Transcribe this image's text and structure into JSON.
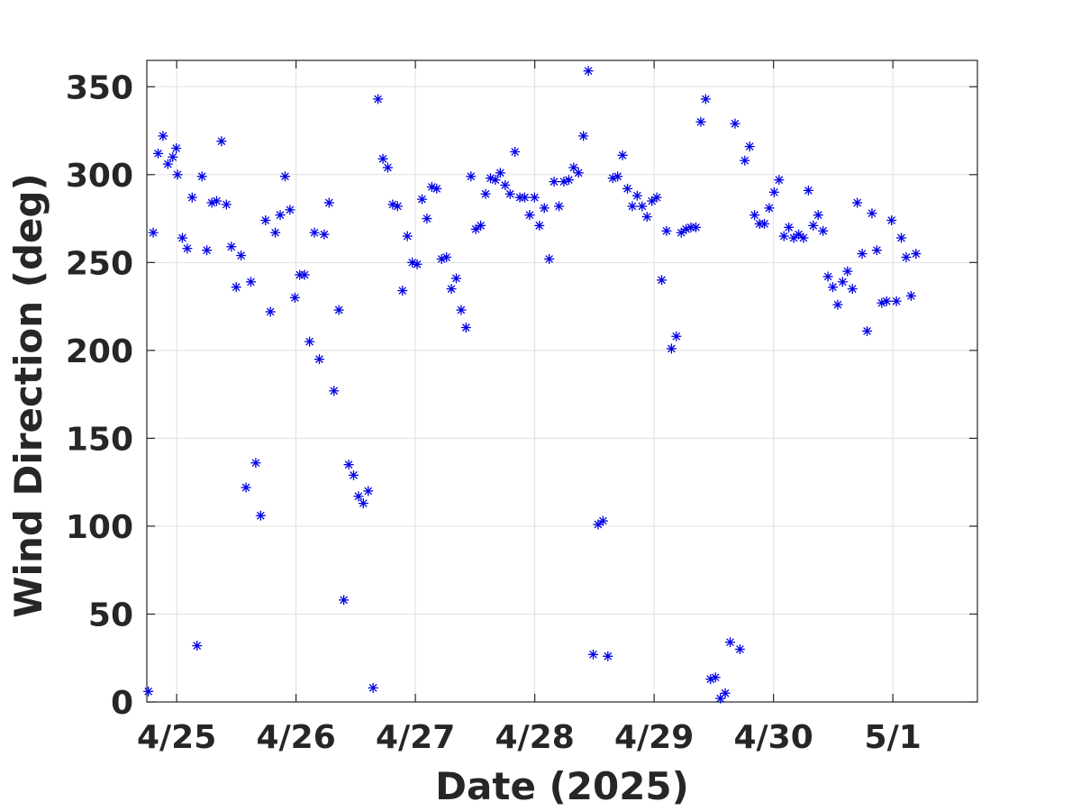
{
  "chart_data": {
    "type": "scatter",
    "xlabel": "Date (2025)",
    "ylabel": "Wind Direction (deg)",
    "title": "",
    "ylim": [
      0,
      365
    ],
    "xlim": [
      "2025-04-24 18:00",
      "2025-05-01 17:00"
    ],
    "yticks": [
      0,
      50,
      100,
      150,
      200,
      250,
      300,
      350
    ],
    "xticks": [
      {
        "date": "2025-04-25 00:00",
        "label": "4/25"
      },
      {
        "date": "2025-04-26 00:00",
        "label": "4/26"
      },
      {
        "date": "2025-04-27 00:00",
        "label": "4/27"
      },
      {
        "date": "2025-04-28 00:00",
        "label": "4/28"
      },
      {
        "date": "2025-04-29 00:00",
        "label": "4/29"
      },
      {
        "date": "2025-04-30 00:00",
        "label": "4/30"
      },
      {
        "date": "2025-05-01 00:00",
        "label": "5/1"
      }
    ],
    "grid": true,
    "marker": "asterisk",
    "marker_color": "#0000e6",
    "points": [
      {
        "x": "2025-04-24 18:18",
        "y": 6
      },
      {
        "x": "2025-04-24 19:17",
        "y": 267
      },
      {
        "x": "2025-04-24 20:16",
        "y": 312
      },
      {
        "x": "2025-04-24 21:15",
        "y": 322
      },
      {
        "x": "2025-04-24 22:14",
        "y": 306
      },
      {
        "x": "2025-04-24 23:13",
        "y": 310
      },
      {
        "x": "2025-04-24 23:55",
        "y": 315
      },
      {
        "x": "2025-04-25 00:10",
        "y": 300
      },
      {
        "x": "2025-04-25 01:09",
        "y": 264
      },
      {
        "x": "2025-04-25 02:08",
        "y": 258
      },
      {
        "x": "2025-04-25 03:07",
        "y": 287
      },
      {
        "x": "2025-04-25 04:06",
        "y": 32
      },
      {
        "x": "2025-04-25 05:05",
        "y": 299
      },
      {
        "x": "2025-04-25 06:04",
        "y": 257
      },
      {
        "x": "2025-04-25 07:03",
        "y": 284
      },
      {
        "x": "2025-04-25 08:02",
        "y": 285
      },
      {
        "x": "2025-04-25 09:01",
        "y": 319
      },
      {
        "x": "2025-04-25 10:00",
        "y": 283
      },
      {
        "x": "2025-04-25 10:59",
        "y": 259
      },
      {
        "x": "2025-04-25 11:58",
        "y": 236
      },
      {
        "x": "2025-04-25 12:57",
        "y": 254
      },
      {
        "x": "2025-04-25 13:56",
        "y": 122
      },
      {
        "x": "2025-04-25 14:55",
        "y": 239
      },
      {
        "x": "2025-04-25 15:54",
        "y": 136
      },
      {
        "x": "2025-04-25 16:53",
        "y": 106
      },
      {
        "x": "2025-04-25 17:52",
        "y": 274
      },
      {
        "x": "2025-04-25 18:51",
        "y": 222
      },
      {
        "x": "2025-04-25 19:50",
        "y": 267
      },
      {
        "x": "2025-04-25 20:49",
        "y": 277
      },
      {
        "x": "2025-04-25 21:48",
        "y": 299
      },
      {
        "x": "2025-04-25 22:47",
        "y": 280
      },
      {
        "x": "2025-04-25 23:46",
        "y": 230
      },
      {
        "x": "2025-04-26 00:45",
        "y": 243
      },
      {
        "x": "2025-04-26 01:44",
        "y": 243
      },
      {
        "x": "2025-04-26 02:43",
        "y": 205
      },
      {
        "x": "2025-04-26 03:42",
        "y": 267
      },
      {
        "x": "2025-04-26 04:41",
        "y": 195
      },
      {
        "x": "2025-04-26 05:40",
        "y": 266
      },
      {
        "x": "2025-04-26 06:39",
        "y": 284
      },
      {
        "x": "2025-04-26 07:38",
        "y": 177
      },
      {
        "x": "2025-04-26 08:37",
        "y": 223
      },
      {
        "x": "2025-04-26 09:36",
        "y": 58
      },
      {
        "x": "2025-04-26 10:35",
        "y": 135
      },
      {
        "x": "2025-04-26 11:34",
        "y": 129
      },
      {
        "x": "2025-04-26 12:33",
        "y": 117
      },
      {
        "x": "2025-04-26 13:32",
        "y": 113
      },
      {
        "x": "2025-04-26 14:31",
        "y": 120
      },
      {
        "x": "2025-04-26 15:30",
        "y": 8
      },
      {
        "x": "2025-04-26 16:29",
        "y": 343
      },
      {
        "x": "2025-04-26 17:28",
        "y": 309
      },
      {
        "x": "2025-04-26 18:27",
        "y": 304
      },
      {
        "x": "2025-04-26 19:26",
        "y": 283
      },
      {
        "x": "2025-04-26 20:25",
        "y": 282
      },
      {
        "x": "2025-04-26 21:24",
        "y": 234
      },
      {
        "x": "2025-04-26 22:23",
        "y": 265
      },
      {
        "x": "2025-04-26 23:22",
        "y": 250
      },
      {
        "x": "2025-04-27 00:21",
        "y": 249
      },
      {
        "x": "2025-04-27 01:20",
        "y": 286
      },
      {
        "x": "2025-04-27 02:19",
        "y": 275
      },
      {
        "x": "2025-04-27 03:18",
        "y": 293
      },
      {
        "x": "2025-04-27 04:17",
        "y": 292
      },
      {
        "x": "2025-04-27 05:16",
        "y": 252
      },
      {
        "x": "2025-04-27 06:15",
        "y": 253
      },
      {
        "x": "2025-04-27 07:14",
        "y": 235
      },
      {
        "x": "2025-04-27 08:13",
        "y": 241
      },
      {
        "x": "2025-04-27 09:12",
        "y": 223
      },
      {
        "x": "2025-04-27 10:11",
        "y": 213
      },
      {
        "x": "2025-04-27 11:10",
        "y": 299
      },
      {
        "x": "2025-04-27 12:09",
        "y": 269
      },
      {
        "x": "2025-04-27 13:08",
        "y": 271
      },
      {
        "x": "2025-04-27 14:07",
        "y": 289
      },
      {
        "x": "2025-04-27 15:06",
        "y": 298
      },
      {
        "x": "2025-04-27 16:05",
        "y": 297
      },
      {
        "x": "2025-04-27 17:04",
        "y": 301
      },
      {
        "x": "2025-04-27 18:03",
        "y": 294
      },
      {
        "x": "2025-04-27 19:02",
        "y": 289
      },
      {
        "x": "2025-04-27 20:01",
        "y": 313
      },
      {
        "x": "2025-04-27 21:00",
        "y": 287
      },
      {
        "x": "2025-04-27 21:59",
        "y": 287
      },
      {
        "x": "2025-04-27 22:58",
        "y": 277
      },
      {
        "x": "2025-04-27 23:57",
        "y": 287
      },
      {
        "x": "2025-04-28 00:56",
        "y": 271
      },
      {
        "x": "2025-04-28 01:55",
        "y": 281
      },
      {
        "x": "2025-04-28 02:54",
        "y": 252
      },
      {
        "x": "2025-04-28 03:53",
        "y": 296
      },
      {
        "x": "2025-04-28 04:52",
        "y": 282
      },
      {
        "x": "2025-04-28 05:51",
        "y": 296
      },
      {
        "x": "2025-04-28 06:50",
        "y": 297
      },
      {
        "x": "2025-04-28 07:49",
        "y": 304
      },
      {
        "x": "2025-04-28 08:48",
        "y": 301
      },
      {
        "x": "2025-04-28 09:47",
        "y": 322
      },
      {
        "x": "2025-04-28 10:46",
        "y": 359
      },
      {
        "x": "2025-04-28 11:45",
        "y": 27
      },
      {
        "x": "2025-04-28 12:44",
        "y": 101
      },
      {
        "x": "2025-04-28 13:43",
        "y": 103
      },
      {
        "x": "2025-04-28 14:42",
        "y": 26
      },
      {
        "x": "2025-04-28 15:41",
        "y": 298
      },
      {
        "x": "2025-04-28 16:40",
        "y": 299
      },
      {
        "x": "2025-04-28 17:39",
        "y": 311
      },
      {
        "x": "2025-04-28 18:38",
        "y": 292
      },
      {
        "x": "2025-04-28 19:37",
        "y": 282
      },
      {
        "x": "2025-04-28 20:36",
        "y": 288
      },
      {
        "x": "2025-04-28 21:35",
        "y": 282
      },
      {
        "x": "2025-04-28 22:34",
        "y": 276
      },
      {
        "x": "2025-04-28 23:33",
        "y": 285
      },
      {
        "x": "2025-04-29 00:32",
        "y": 287
      },
      {
        "x": "2025-04-29 01:31",
        "y": 240
      },
      {
        "x": "2025-04-29 02:30",
        "y": 268
      },
      {
        "x": "2025-04-29 03:29",
        "y": 201
      },
      {
        "x": "2025-04-29 04:28",
        "y": 208
      },
      {
        "x": "2025-04-29 05:27",
        "y": 267
      },
      {
        "x": "2025-04-29 06:26",
        "y": 269
      },
      {
        "x": "2025-04-29 07:25",
        "y": 270
      },
      {
        "x": "2025-04-29 08:24",
        "y": 270
      },
      {
        "x": "2025-04-29 09:23",
        "y": 330
      },
      {
        "x": "2025-04-29 10:22",
        "y": 343
      },
      {
        "x": "2025-04-29 11:21",
        "y": 13
      },
      {
        "x": "2025-04-29 12:20",
        "y": 14
      },
      {
        "x": "2025-04-29 13:19",
        "y": 2
      },
      {
        "x": "2025-04-29 14:18",
        "y": 5
      },
      {
        "x": "2025-04-29 15:17",
        "y": 34
      },
      {
        "x": "2025-04-29 16:16",
        "y": 329
      },
      {
        "x": "2025-04-29 17:15",
        "y": 30
      },
      {
        "x": "2025-04-29 18:14",
        "y": 308
      },
      {
        "x": "2025-04-29 19:13",
        "y": 316
      },
      {
        "x": "2025-04-29 20:12",
        "y": 277
      },
      {
        "x": "2025-04-29 21:11",
        "y": 272
      },
      {
        "x": "2025-04-29 22:10",
        "y": 272
      },
      {
        "x": "2025-04-29 23:09",
        "y": 281
      },
      {
        "x": "2025-04-30 00:08",
        "y": 290
      },
      {
        "x": "2025-04-30 01:07",
        "y": 297
      },
      {
        "x": "2025-04-30 02:06",
        "y": 265
      },
      {
        "x": "2025-04-30 03:05",
        "y": 270
      },
      {
        "x": "2025-04-30 04:04",
        "y": 264
      },
      {
        "x": "2025-04-30 05:03",
        "y": 266
      },
      {
        "x": "2025-04-30 06:02",
        "y": 264
      },
      {
        "x": "2025-04-30 07:01",
        "y": 291
      },
      {
        "x": "2025-04-30 08:00",
        "y": 271
      },
      {
        "x": "2025-04-30 08:59",
        "y": 277
      },
      {
        "x": "2025-04-30 09:58",
        "y": 268
      },
      {
        "x": "2025-04-30 10:57",
        "y": 242
      },
      {
        "x": "2025-04-30 11:56",
        "y": 236
      },
      {
        "x": "2025-04-30 12:55",
        "y": 226
      },
      {
        "x": "2025-04-30 13:54",
        "y": 239
      },
      {
        "x": "2025-04-30 14:53",
        "y": 245
      },
      {
        "x": "2025-04-30 15:52",
        "y": 235
      },
      {
        "x": "2025-04-30 16:51",
        "y": 284
      },
      {
        "x": "2025-04-30 17:50",
        "y": 255
      },
      {
        "x": "2025-04-30 18:49",
        "y": 211
      },
      {
        "x": "2025-04-30 19:48",
        "y": 278
      },
      {
        "x": "2025-04-30 20:47",
        "y": 257
      },
      {
        "x": "2025-04-30 21:46",
        "y": 227
      },
      {
        "x": "2025-04-30 22:45",
        "y": 228
      },
      {
        "x": "2025-04-30 23:44",
        "y": 274
      },
      {
        "x": "2025-05-01 00:43",
        "y": 228
      },
      {
        "x": "2025-05-01 01:42",
        "y": 264
      },
      {
        "x": "2025-05-01 02:41",
        "y": 253
      },
      {
        "x": "2025-05-01 03:40",
        "y": 231
      },
      {
        "x": "2025-05-01 04:39",
        "y": 255
      }
    ]
  }
}
